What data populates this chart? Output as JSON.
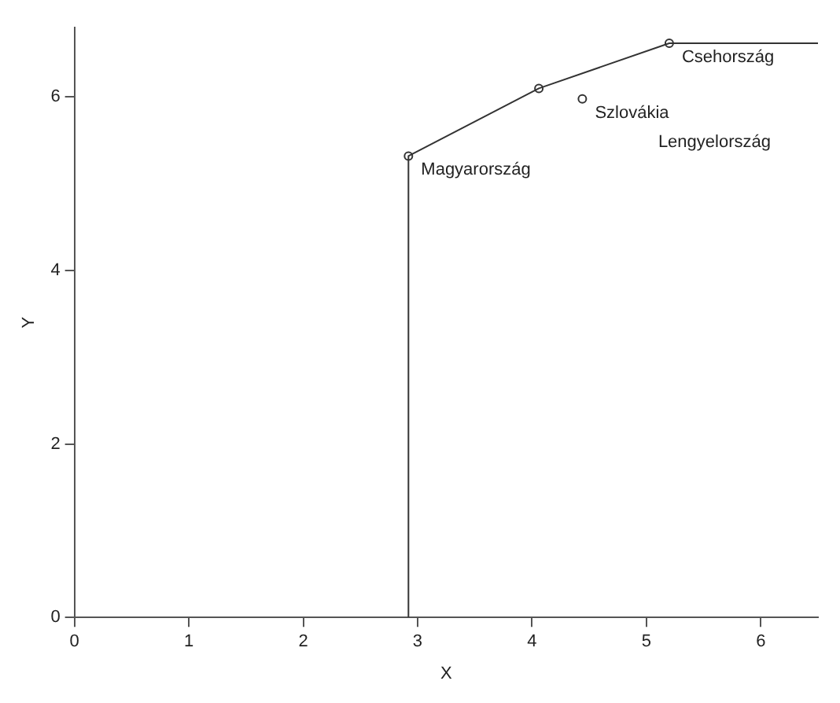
{
  "chart_data": {
    "type": "line",
    "xlabel": "X",
    "ylabel": "Y",
    "xlim": [
      0,
      6.5
    ],
    "ylim": [
      0,
      6.8
    ],
    "xticks": [
      0,
      1,
      2,
      3,
      4,
      5,
      6
    ],
    "yticks": [
      0,
      2,
      4,
      6
    ],
    "grid": false,
    "legend": false,
    "series": [
      {
        "color": "#333333",
        "marker": "none",
        "x": [
          2.92,
          2.92,
          4.06,
          5.2,
          6.5
        ],
        "values": [
          0,
          5.32,
          6.1,
          6.62,
          6.62
        ]
      },
      {
        "type": "scatter",
        "color": "#333333",
        "marker": "circle",
        "x": [
          2.92,
          4.06,
          4.44,
          5.2
        ],
        "values": [
          5.32,
          6.1,
          5.98,
          6.62
        ]
      }
    ],
    "annotations": [
      {
        "text": "Magyarország",
        "x": 2.92,
        "y": 5.32
      },
      {
        "text": "Szlovákia",
        "x": 4.44,
        "y": 5.98
      },
      "Lengyelország",
      {
        "text": "Csehország",
        "x": 5.2,
        "y": 6.62
      }
    ]
  }
}
